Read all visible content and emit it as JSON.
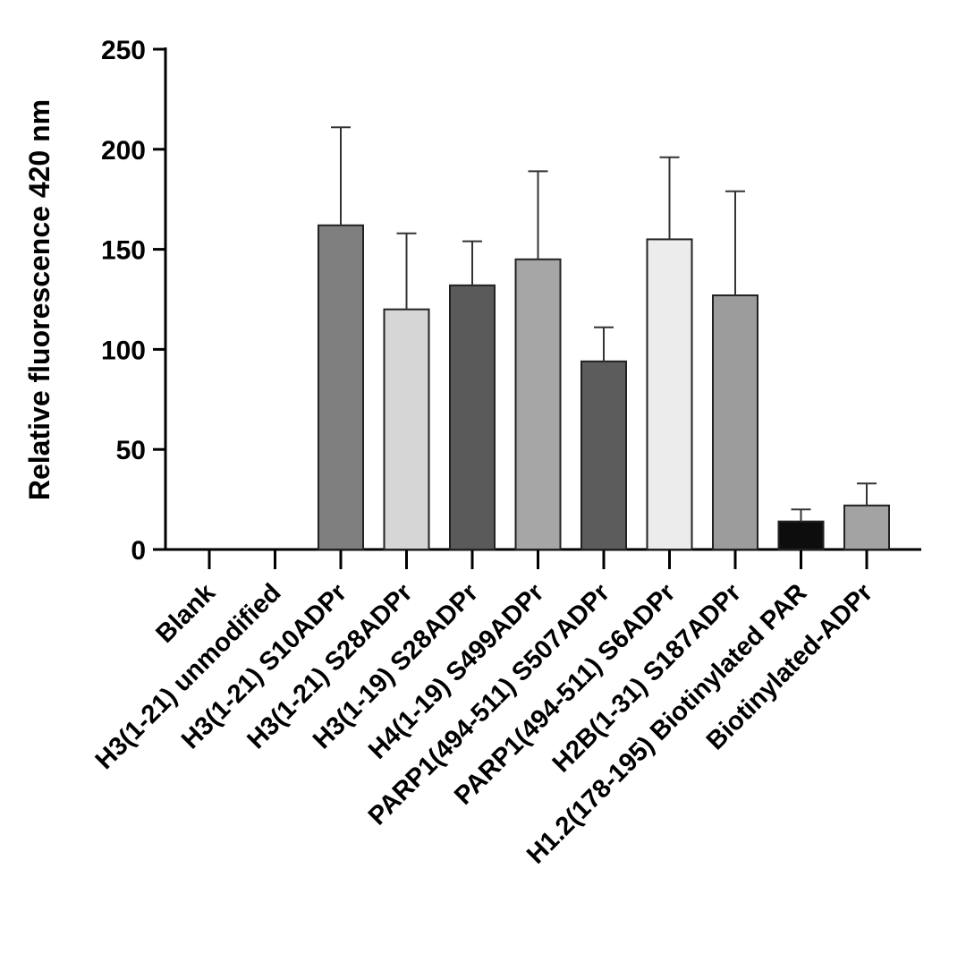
{
  "chart_data": {
    "type": "bar",
    "title": "",
    "xlabel": "",
    "ylabel": "Relative fluorescence 420 nm",
    "ylim": [
      0,
      250
    ],
    "yticks": [
      0,
      50,
      100,
      150,
      200,
      250
    ],
    "grid": false,
    "categories": [
      "Blank",
      "H3(1-21) unmodified",
      "H3(1-21) S10ADPr",
      "H3(1-21) S28ADPr",
      "H3(1-19) S28ADPr",
      "H4(1-19) S499ADPr",
      "PARP1(494-511) S507ADPr",
      "PARP1(494-511) S6ADPr",
      "H2B(1-31) S187ADPr",
      "H1.2(178-195) Biotinylated PAR",
      "Biotinylated-ADPr"
    ],
    "values": [
      0,
      0,
      162,
      120,
      132,
      145,
      94,
      155,
      127,
      14,
      22
    ],
    "errors": [
      0,
      0,
      49,
      38,
      22,
      44,
      17,
      41,
      52,
      6,
      11
    ],
    "colors": [
      "#ffffff",
      "#ffffff",
      "#7f7f7f",
      "#d6d6d6",
      "#5a5a5a",
      "#a6a6a6",
      "#5c5c5c",
      "#ececec",
      "#9c9c9c",
      "#0d0d0d",
      "#a3a3a3"
    ]
  }
}
